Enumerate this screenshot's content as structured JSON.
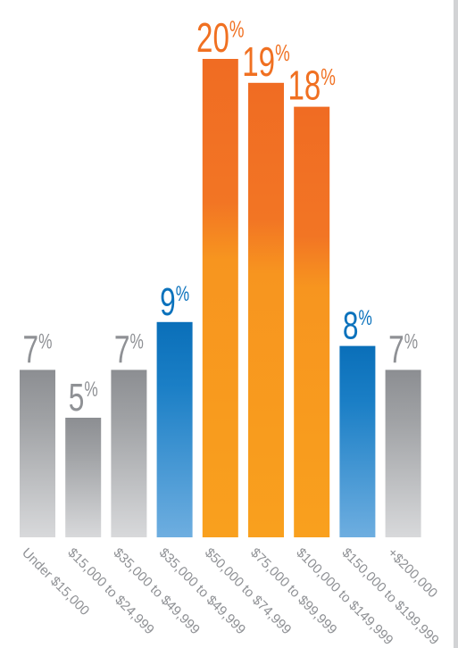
{
  "chart_data": {
    "type": "bar",
    "categories": [
      "Under $15,000",
      "$15,000 to $24,999",
      "$35,000 to $49,999",
      "$35,000 to $49,999",
      "$50,000 to $74,999",
      "$75,000 to $99,999",
      "$100,000 to $149,999",
      "$150,000 to $199,999",
      "+$200,000"
    ],
    "values": [
      7,
      5,
      7,
      9,
      20,
      19,
      18,
      8,
      7
    ],
    "value_labels": [
      "7",
      "5",
      "7",
      "9",
      "20",
      "19",
      "18",
      "8",
      "7"
    ],
    "unit_suffix": "%",
    "color_groups": [
      "gray",
      "gray",
      "gray",
      "blue",
      "orange",
      "orange",
      "orange",
      "blue",
      "gray"
    ],
    "colors": {
      "gray": "#909296",
      "blue": "#0b72bc",
      "orange": "#f07021",
      "background": "#ffffff",
      "rule": "#d2d3d5"
    },
    "ylim": [
      0,
      20
    ],
    "title": "",
    "xlabel": "",
    "ylabel": "",
    "grid": false,
    "legend": "none"
  }
}
